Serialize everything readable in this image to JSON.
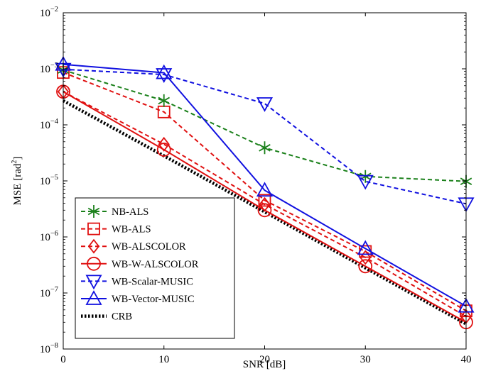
{
  "chart_data": {
    "type": "line",
    "xlabel": "SNR [dB]",
    "ylabel": "MSE [rad²]",
    "ylabel_base": "MSE [rad",
    "ylabel_sup": "2",
    "ylabel_close": "]",
    "xlim": [
      0,
      40
    ],
    "ylim": [
      1e-08,
      0.01
    ],
    "yscale": "log",
    "grid": false,
    "legend_position": "bottom-left",
    "x_ticks": [
      0,
      10,
      20,
      30,
      40
    ],
    "x_tick_labels": [
      "0",
      "10",
      "20",
      "30",
      "40"
    ],
    "y_ticks": [
      {
        "value": 1e-08,
        "base": "10",
        "exp": "−8"
      },
      {
        "value": 1e-07,
        "base": "10",
        "exp": "−7"
      },
      {
        "value": 1e-06,
        "base": "10",
        "exp": "−6"
      },
      {
        "value": 1e-05,
        "base": "10",
        "exp": "−5"
      },
      {
        "value": 0.0001,
        "base": "10",
        "exp": "−4"
      },
      {
        "value": 0.001,
        "base": "10",
        "exp": "−3"
      },
      {
        "value": 0.01,
        "base": "10",
        "exp": "−2"
      }
    ],
    "x": [
      0,
      10,
      20,
      30,
      40
    ],
    "series": [
      {
        "name": "NB-ALS",
        "color": "#1a801a",
        "dash": "dashed",
        "marker": "asterisk",
        "values": [
          0.00095,
          0.00027,
          3.9e-05,
          1.2e-05,
          9.8e-06
        ]
      },
      {
        "name": "WB-ALS",
        "color": "#e01010",
        "dash": "dashed",
        "marker": "square",
        "values": [
          0.00086,
          0.00017,
          4.5e-06,
          5.5e-07,
          4.8e-08
        ]
      },
      {
        "name": "WB-ALSCOLOR",
        "color": "#e01010",
        "dash": "dashed",
        "marker": "diamond",
        "values": [
          0.00039,
          4.5e-05,
          3.8e-06,
          4.3e-07,
          3.8e-08
        ]
      },
      {
        "name": "WB-W-ALSCOLOR",
        "color": "#e01010",
        "dash": "solid",
        "marker": "circle",
        "values": [
          0.00039,
          3.6e-05,
          3e-06,
          3e-07,
          3e-08
        ]
      },
      {
        "name": "WB-Scalar-MUSIC",
        "color": "#1010e0",
        "dash": "dashed",
        "marker": "triangle-down",
        "values": [
          0.00098,
          0.00079,
          0.00024,
          9.8e-06,
          3.9e-06
        ]
      },
      {
        "name": "WB-Vector-MUSIC",
        "color": "#1010e0",
        "dash": "solid",
        "marker": "triangle-up",
        "values": [
          0.0012,
          0.00085,
          6.8e-06,
          6.2e-07,
          5.8e-08
        ]
      },
      {
        "name": "CRB",
        "color": "#000000",
        "dash": "dotted",
        "marker": "none",
        "values": [
          0.00027,
          2.8e-05,
          2.8e-06,
          2.8e-07,
          2.8e-08
        ]
      }
    ]
  }
}
